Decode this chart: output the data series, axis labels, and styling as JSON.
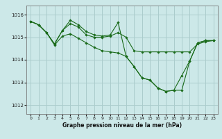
{
  "title": "",
  "xlabel": "Graphe pression niveau de la mer (hPa)",
  "ylabel": "",
  "background_color": "#cce8e8",
  "grid_color": "#aacccc",
  "line_color": "#1a6b1a",
  "marker_color": "#1a6b1a",
  "ylim": [
    1011.6,
    1016.4
  ],
  "xlim": [
    -0.5,
    23.5
  ],
  "yticks": [
    1012,
    1013,
    1014,
    1015,
    1016
  ],
  "xticks": [
    0,
    1,
    2,
    3,
    4,
    5,
    6,
    7,
    8,
    9,
    10,
    11,
    12,
    13,
    14,
    15,
    16,
    17,
    18,
    19,
    20,
    21,
    22,
    23
  ],
  "series": [
    [
      1015.7,
      1015.55,
      1015.2,
      1014.7,
      1015.3,
      1015.6,
      1015.45,
      1015.1,
      1015.0,
      1015.0,
      1015.05,
      1015.2,
      1015.0,
      1014.4,
      1014.35,
      1014.35,
      1014.35,
      1014.35,
      1014.35,
      1014.35,
      1014.35,
      1014.7,
      1014.8,
      1014.85
    ],
    [
      1015.7,
      1015.55,
      1015.2,
      1014.7,
      1015.3,
      1015.75,
      1015.55,
      1015.25,
      1015.1,
      1015.05,
      1015.1,
      1015.65,
      1014.15,
      1013.7,
      1013.2,
      1013.1,
      1012.75,
      1012.6,
      1012.65,
      1012.65,
      1013.95,
      1014.75,
      1014.85,
      1014.85
    ],
    [
      1015.7,
      1015.55,
      1015.2,
      1014.65,
      1015.05,
      1015.15,
      1014.95,
      1014.75,
      1014.55,
      1014.4,
      1014.35,
      1014.3,
      1014.15,
      1013.7,
      1013.2,
      1013.1,
      1012.75,
      1012.6,
      1012.65,
      1013.3,
      1013.95,
      1014.75,
      1014.85,
      1014.85
    ]
  ]
}
